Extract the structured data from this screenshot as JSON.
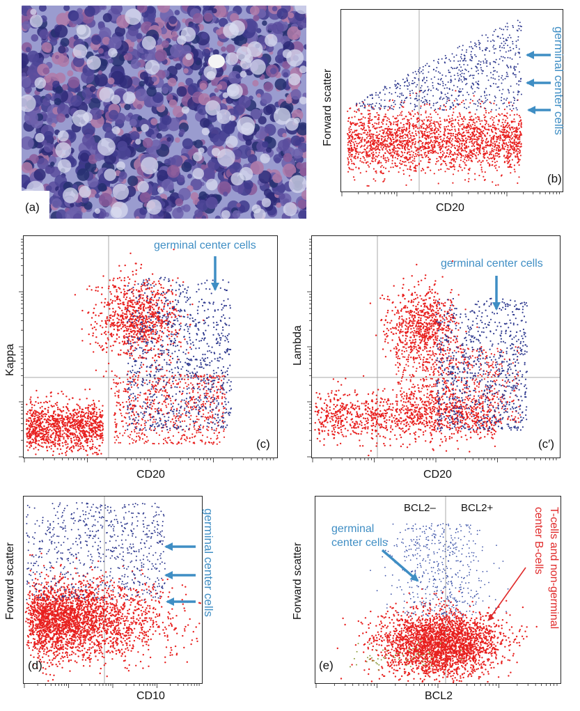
{
  "colors": {
    "accent_blue": "#3f8ec4",
    "cell_red": "#e8201f",
    "cell_blue": "#2f3a8f",
    "annotation_red": "#e02a2a",
    "grid": "#a8a8a8"
  },
  "panel_a": {
    "tag": "(a)"
  },
  "chart_data": [
    {
      "id": "b",
      "type": "scatter",
      "tag": "(b)",
      "xlabel": "CD20",
      "ylabel": "Forward scatter",
      "xscale": "log",
      "annotation": "germinal center cells",
      "series": [
        {
          "color": "#e8201f",
          "count": 2200
        },
        {
          "color": "#2f3a8f",
          "count": 650
        }
      ]
    },
    {
      "id": "c",
      "type": "scatter",
      "tag": "(c)",
      "xlabel": "CD20",
      "ylabel": "Kappa",
      "xscale": "log",
      "yscale": "log",
      "annotation": "germinal center cells",
      "series": [
        {
          "color": "#e8201f",
          "count": 2600
        },
        {
          "color": "#2f3a8f",
          "count": 900
        }
      ]
    },
    {
      "id": "c2",
      "type": "scatter",
      "tag": "(c′)",
      "xlabel": "CD20",
      "ylabel": "Lambda",
      "xscale": "log",
      "yscale": "log",
      "annotation": "germinal center cells",
      "series": [
        {
          "color": "#e8201f",
          "count": 2400
        },
        {
          "color": "#2f3a8f",
          "count": 800
        }
      ]
    },
    {
      "id": "d",
      "type": "scatter",
      "tag": "(d)",
      "xlabel": "CD10",
      "ylabel": "Forward scatter",
      "xscale": "log",
      "annotation": "germinal center cells",
      "series": [
        {
          "color": "#e8201f",
          "count": 2600
        },
        {
          "color": "#2f3a8f",
          "count": 700
        }
      ]
    },
    {
      "id": "e",
      "type": "scatter",
      "tag": "(e)",
      "xlabel": "BCL2",
      "ylabel": "Forward scatter",
      "xscale": "log",
      "quadrant_labels": [
        "BCL2–",
        "BCL2+"
      ],
      "annotation": "germinal center cells",
      "annotation_red": "T-cells and non-germinal center B-cells",
      "series": [
        {
          "color": "#e8201f",
          "count": 2600
        },
        {
          "color": "#3b52a8",
          "count": 500
        },
        {
          "color": "#8a9a3a",
          "count": 60
        }
      ]
    }
  ]
}
